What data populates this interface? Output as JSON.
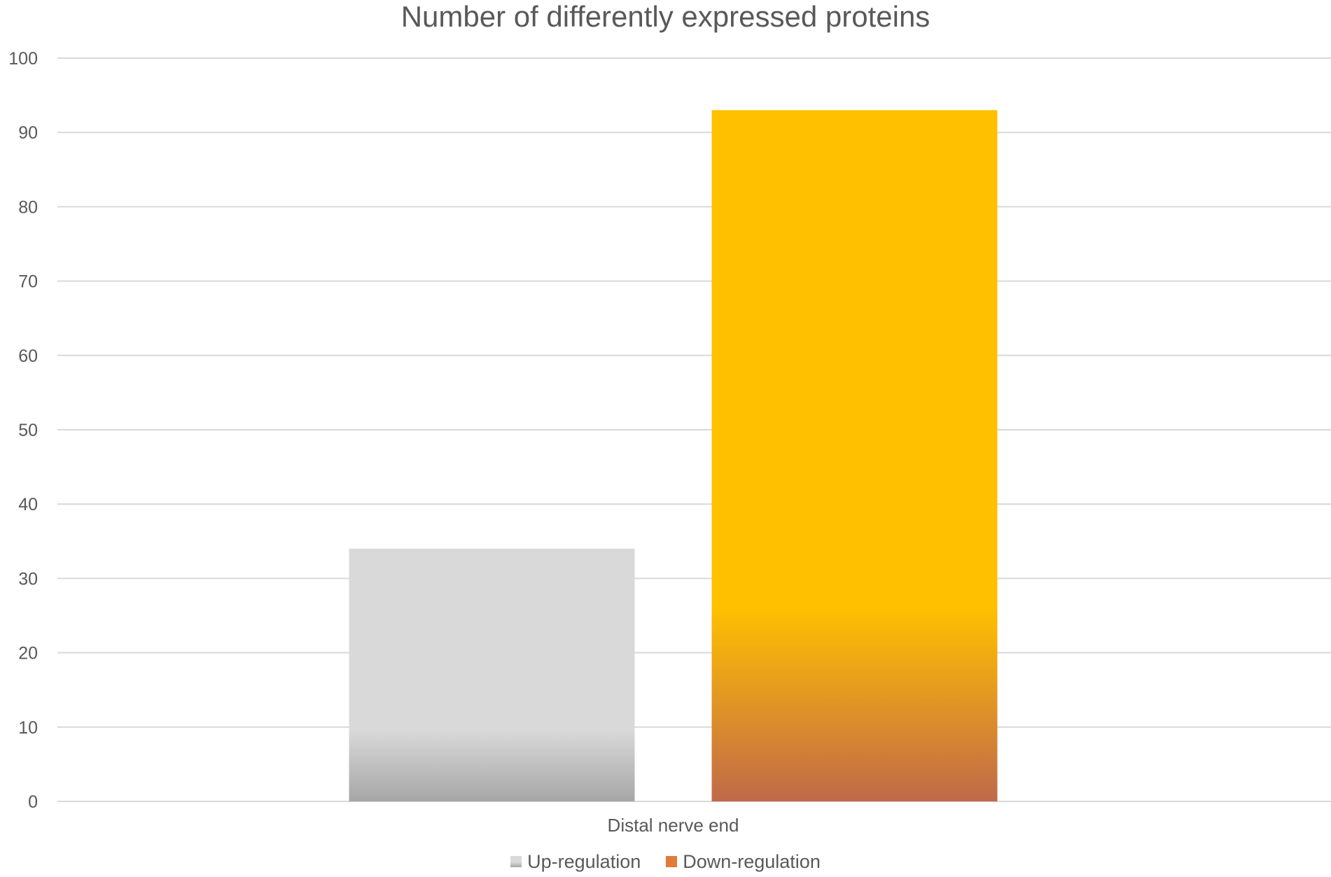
{
  "chart_data": {
    "type": "bar",
    "title": "Number of differently expressed proteins",
    "categories": [
      "Distal nerve end"
    ],
    "series": [
      {
        "name": "Up-regulation",
        "values": [
          34
        ],
        "color": "#d9d9d9",
        "gradient_bottom": "#a6a6a6"
      },
      {
        "name": "Down-regulation",
        "values": [
          93
        ],
        "color": "#ffc000",
        "gradient_bottom": "#c0694a"
      }
    ],
    "ylim": [
      0,
      100
    ],
    "yticks": [
      0,
      10,
      20,
      30,
      40,
      50,
      60,
      70,
      80,
      90,
      100
    ],
    "grid": true,
    "legend_position": "bottom",
    "xlabel": "",
    "ylabel": ""
  }
}
